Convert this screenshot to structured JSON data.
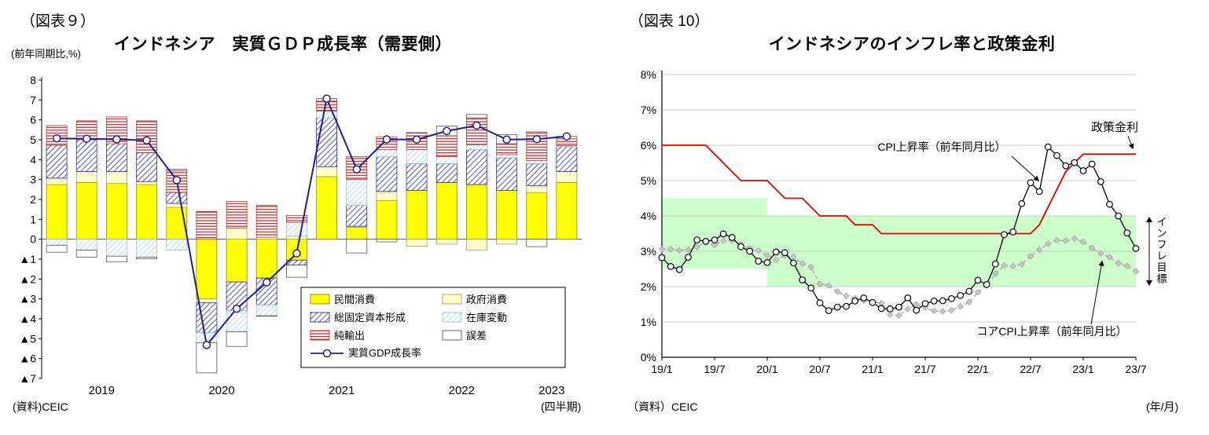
{
  "left_panel": {
    "figure_label": "（図表９）",
    "y_unit": "(前年同期比,%)",
    "title": "インドネシア　実質ＧＤＰ成長率（需要側）",
    "source": "(資料)CEIC",
    "x_note": "(四半期)"
  },
  "right_panel": {
    "figure_label": "（図表 10）",
    "title": "インドネシアのインフレ率と政策金利",
    "source": "（資料）CEIC",
    "x_note": "(年/月)"
  },
  "chart_data": [
    {
      "type": "bar",
      "subtype": "stacked-contribution-bars-with-line",
      "title": "インドネシア 実質GDP成長率(需要側)",
      "ylabel": "(前年同期比,%)",
      "ylim": [
        -7,
        8
      ],
      "y_tick_step": 1,
      "negative_prefix": "▲",
      "grid": false,
      "legend_position": "inside-lower-right",
      "categories": [
        "2019Q1",
        "2019Q2",
        "2019Q3",
        "2019Q4",
        "2020Q1",
        "2020Q2",
        "2020Q3",
        "2020Q4",
        "2021Q1",
        "2021Q2",
        "2021Q3",
        "2021Q4",
        "2022Q1",
        "2022Q2",
        "2022Q3",
        "2022Q4",
        "2023Q1",
        "2023Q2"
      ],
      "x_year_labels": [
        "2019",
        "2020",
        "2021",
        "2022",
        "2023"
      ],
      "series": [
        {
          "name": "民間消費",
          "style": "solid-yellow",
          "values": [
            2.75,
            2.85,
            2.8,
            2.75,
            1.6,
            -3.0,
            -2.15,
            -1.95,
            -1.05,
            3.15,
            0.6,
            1.95,
            2.45,
            2.85,
            2.75,
            2.45,
            2.35,
            2.85
          ]
        },
        {
          "name": "政府消費",
          "style": "solid-cream",
          "values": [
            0.32,
            0.55,
            0.6,
            0.15,
            0.2,
            -0.2,
            0.55,
            0.1,
            0.15,
            0.5,
            0.05,
            0.45,
            -0.35,
            -0.25,
            -0.55,
            -0.25,
            0.35,
            0.55
          ]
        },
        {
          "name": "総固定資本形成",
          "style": "hatch-blue-diag",
          "values": [
            1.65,
            1.6,
            1.4,
            1.45,
            0.55,
            -1.5,
            -1.45,
            -1.35,
            -0.25,
            2.45,
            1.05,
            1.75,
            1.35,
            0.95,
            1.75,
            1.65,
            1.1,
            1.25
          ]
        },
        {
          "name": "在庫変動",
          "style": "hatch-lightblue-diag",
          "values": [
            -0.3,
            -0.55,
            -0.85,
            -0.9,
            -0.55,
            -0.5,
            -1.05,
            -0.55,
            0.7,
            0.35,
            1.3,
            0.35,
            0.7,
            0.35,
            0.25,
            0.15,
            0.15,
            0.05
          ]
        },
        {
          "name": "純輸出",
          "style": "hatch-red-horiz",
          "values": [
            1.0,
            0.95,
            1.35,
            1.6,
            1.1,
            1.4,
            1.35,
            1.6,
            0.35,
            0.5,
            1.15,
            0.65,
            0.85,
            1.05,
            1.35,
            0.55,
            1.45,
            0.35
          ]
        },
        {
          "name": "誤差",
          "style": "white",
          "values": [
            -0.35,
            -0.35,
            -0.28,
            -0.08,
            0.07,
            -1.52,
            -0.74,
            -0.02,
            -0.61,
            0.12,
            -0.69,
            -0.13,
            0.01,
            0.49,
            0.17,
            0.46,
            -0.37,
            0.12
          ]
        }
      ],
      "line_series": {
        "name": "実質GDP成長率",
        "color": "#1f1f8f",
        "values": [
          5.07,
          5.05,
          5.02,
          4.97,
          2.97,
          -5.32,
          -3.49,
          -2.17,
          -0.71,
          7.07,
          3.51,
          5.02,
          5.01,
          5.44,
          5.72,
          5.01,
          5.03,
          5.17
        ]
      }
    },
    {
      "type": "line",
      "title": "インドネシアのインフレ率と政策金利",
      "ylim": [
        0,
        8
      ],
      "grid": true,
      "y_tick_labels": [
        "0%",
        "1%",
        "2%",
        "3%",
        "4%",
        "5%",
        "6%",
        "7%",
        "8%"
      ],
      "x_tick_labels": [
        "19/1",
        "19/7",
        "20/1",
        "20/7",
        "21/1",
        "21/7",
        "22/1",
        "22/7",
        "23/1",
        "23/7"
      ],
      "x_months_start": "19/1",
      "x_months_end": "23/7",
      "target_band": {
        "label": "インフレ目標",
        "color": "#ccffcc",
        "segments": [
          {
            "from_month": 0,
            "to_month": 12,
            "low": 2.5,
            "high": 4.5
          },
          {
            "from_month": 12,
            "to_month": 54,
            "low": 2.0,
            "high": 4.0
          }
        ]
      },
      "series": [
        {
          "name": "政策金利",
          "color": "#e00000",
          "marker": "none",
          "values": [
            6,
            6,
            6,
            6,
            6,
            6,
            5.75,
            5.5,
            5.25,
            5,
            5,
            5,
            5,
            4.75,
            4.5,
            4.5,
            4.5,
            4.25,
            4,
            4,
            4,
            4,
            3.75,
            3.75,
            3.75,
            3.5,
            3.5,
            3.5,
            3.5,
            3.5,
            3.5,
            3.5,
            3.5,
            3.5,
            3.5,
            3.5,
            3.5,
            3.5,
            3.5,
            3.5,
            3.5,
            3.5,
            3.5,
            3.75,
            4.25,
            4.75,
            5.25,
            5.5,
            5.75,
            5.75,
            5.75,
            5.75,
            5.75,
            5.75,
            5.75
          ]
        },
        {
          "name": "CPI上昇率（前年同月比）",
          "color": "#000000",
          "marker": "circle",
          "values": [
            2.82,
            2.57,
            2.48,
            2.83,
            3.32,
            3.28,
            3.32,
            3.49,
            3.39,
            3.13,
            3.0,
            2.72,
            2.68,
            2.98,
            2.96,
            2.67,
            2.19,
            1.96,
            1.54,
            1.32,
            1.42,
            1.44,
            1.59,
            1.68,
            1.55,
            1.38,
            1.37,
            1.42,
            1.68,
            1.33,
            1.52,
            1.59,
            1.6,
            1.66,
            1.75,
            1.87,
            2.18,
            2.06,
            2.64,
            3.47,
            3.55,
            4.35,
            4.94,
            4.69,
            5.95,
            5.71,
            5.42,
            5.51,
            5.28,
            5.47,
            4.97,
            4.33,
            4.0,
            3.52,
            3.08
          ]
        },
        {
          "name": "コアCPI上昇率（前年同月比）",
          "color": "#b3b3b3",
          "marker": "diamond",
          "dashed": true,
          "values": [
            3.06,
            3.06,
            3.03,
            3.05,
            3.12,
            3.25,
            3.18,
            3.3,
            3.32,
            3.2,
            3.08,
            3.02,
            2.88,
            2.76,
            2.87,
            2.85,
            2.65,
            2.55,
            2.07,
            2.03,
            1.86,
            1.74,
            1.67,
            1.6,
            1.56,
            1.53,
            1.21,
            1.18,
            1.37,
            1.49,
            1.4,
            1.31,
            1.3,
            1.33,
            1.44,
            1.56,
            1.84,
            2.03,
            2.37,
            2.6,
            2.58,
            2.63,
            2.86,
            3.04,
            3.21,
            3.31,
            3.3,
            3.36,
            3.27,
            3.09,
            2.94,
            2.83,
            2.66,
            2.58,
            2.43
          ]
        }
      ]
    }
  ]
}
